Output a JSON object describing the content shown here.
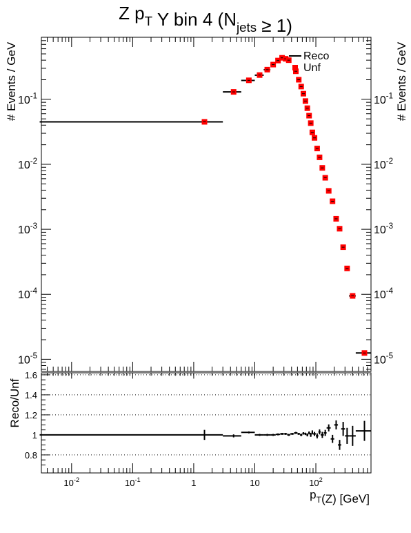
{
  "chart_data": [
    {
      "type": "scatter",
      "title": "Z p_T Y bin 4 (N_jets ≥ 1)",
      "xlabel": "",
      "ylabel": "# Events / GeV",
      "ylabel_right": "# Events / GeV",
      "x_scale": "log",
      "y_scale": "log",
      "xlim": [
        0.0032,
        800
      ],
      "ylim": [
        6.5e-06,
        0.9
      ],
      "x_tick_labels": [
        "10^{-2}",
        "10^{-1}",
        "1",
        "10",
        "10^{2}"
      ],
      "y_tick_labels": [
        "10^{-5}",
        "10^{-4}",
        "10^{-3}",
        "10^{-2}",
        "10^{-1}"
      ],
      "legend": {
        "placement": "top-center",
        "entries": [
          "Reco",
          "Unf"
        ]
      },
      "colors": {
        "reco": "#000000",
        "unf": "#ff0000"
      },
      "series": [
        {
          "name": "Reco",
          "style": "horizontal bars",
          "points": [
            {
              "xlo": 0.003,
              "xhi": 3,
              "y": 0.045
            },
            {
              "xlo": 3,
              "xhi": 6,
              "y": 0.13
            },
            {
              "xlo": 6,
              "xhi": 10,
              "y": 0.195
            },
            {
              "xlo": 10,
              "xhi": 14,
              "y": 0.235
            },
            {
              "xlo": 14,
              "xhi": 18,
              "y": 0.285
            },
            {
              "xlo": 18,
              "xhi": 22,
              "y": 0.34
            },
            {
              "xlo": 22,
              "xhi": 26,
              "y": 0.395
            },
            {
              "xlo": 26,
              "xhi": 30,
              "y": 0.435
            },
            {
              "xlo": 30,
              "xhi": 34,
              "y": 0.42
            },
            {
              "xlo": 34,
              "xhi": 38,
              "y": 0.4
            },
            {
              "xlo": 50,
              "xhi": 55,
              "y": 0.2
            },
            {
              "xlo": 55,
              "xhi": 60,
              "y": 0.157
            },
            {
              "xlo": 60,
              "xhi": 65,
              "y": 0.122
            },
            {
              "xlo": 65,
              "xhi": 70,
              "y": 0.094
            },
            {
              "xlo": 70,
              "xhi": 75,
              "y": 0.073
            },
            {
              "xlo": 75,
              "xhi": 80,
              "y": 0.056
            },
            {
              "xlo": 80,
              "xhi": 85,
              "y": 0.043
            },
            {
              "xlo": 85,
              "xhi": 90,
              "y": 0.031
            },
            {
              "xlo": 90,
              "xhi": 100,
              "y": 0.0255
            },
            {
              "xlo": 100,
              "xhi": 110,
              "y": 0.0175
            },
            {
              "xlo": 110,
              "xhi": 120,
              "y": 0.0128
            },
            {
              "xlo": 120,
              "xhi": 135,
              "y": 0.0088
            },
            {
              "xlo": 135,
              "xhi": 150,
              "y": 0.0062
            },
            {
              "xlo": 150,
              "xhi": 175,
              "y": 0.0039
            },
            {
              "xlo": 175,
              "xhi": 200,
              "y": 0.0027
            },
            {
              "xlo": 200,
              "xhi": 230,
              "y": 0.00145
            },
            {
              "xlo": 230,
              "xhi": 260,
              "y": 0.00102
            },
            {
              "xlo": 260,
              "xhi": 300,
              "y": 0.00053
            },
            {
              "xlo": 300,
              "xhi": 350,
              "y": 0.00025
            },
            {
              "xlo": 350,
              "xhi": 450,
              "y": 9.45e-05
            },
            {
              "xlo": 450,
              "xhi": 800,
              "y": 1.25e-05
            }
          ]
        },
        {
          "name": "Unf",
          "style": "red squares",
          "points": [
            {
              "x": 1.5,
              "y": 0.045
            },
            {
              "x": 4.5,
              "y": 0.13
            },
            {
              "x": 8,
              "y": 0.196
            },
            {
              "x": 12,
              "y": 0.236
            },
            {
              "x": 16,
              "y": 0.286
            },
            {
              "x": 20,
              "y": 0.342
            },
            {
              "x": 24,
              "y": 0.395
            },
            {
              "x": 28,
              "y": 0.435
            },
            {
              "x": 32,
              "y": 0.42
            },
            {
              "x": 36,
              "y": 0.4
            },
            {
              "x": 47,
              "y": 0.27
            },
            {
              "x": 52.5,
              "y": 0.2
            },
            {
              "x": 57.5,
              "y": 0.157
            },
            {
              "x": 62.5,
              "y": 0.122
            },
            {
              "x": 67.5,
              "y": 0.094
            },
            {
              "x": 72.5,
              "y": 0.073
            },
            {
              "x": 77.5,
              "y": 0.056
            },
            {
              "x": 82.5,
              "y": 0.043
            },
            {
              "x": 87.5,
              "y": 0.031
            },
            {
              "x": 95,
              "y": 0.0255
            },
            {
              "x": 105,
              "y": 0.0175
            },
            {
              "x": 115,
              "y": 0.0128
            },
            {
              "x": 127.5,
              "y": 0.0088
            },
            {
              "x": 142.5,
              "y": 0.0062
            },
            {
              "x": 162.5,
              "y": 0.0039
            },
            {
              "x": 187.5,
              "y": 0.0027
            },
            {
              "x": 215,
              "y": 0.00145
            },
            {
              "x": 245,
              "y": 0.00102
            },
            {
              "x": 280,
              "y": 0.00053
            },
            {
              "x": 325,
              "y": 0.00025
            },
            {
              "x": 400,
              "y": 9.45e-05
            },
            {
              "x": 625,
              "y": 1.25e-05
            }
          ]
        }
      ]
    },
    {
      "type": "scatter",
      "title": "",
      "xlabel": "p_T(Z) [GeV]",
      "ylabel": "Reco/Unf",
      "x_scale": "log",
      "y_scale": "linear",
      "xlim": [
        0.0032,
        800
      ],
      "ylim": [
        0.62,
        1.62
      ],
      "y_ticks": [
        0.8,
        1,
        1.2,
        1.4,
        1.6
      ],
      "y_tick_labels": [
        "0.8",
        "1",
        "1.2",
        "1.4",
        "1.6"
      ],
      "x_tick_labels": [
        "10^{-2}",
        "10^{-1}",
        "1",
        "10",
        "10^{2}"
      ],
      "grid": "horizontal dotted at 0.8, 1.2, 1.4, 1.6",
      "series": [
        {
          "name": "",
          "points": [
            {
              "x": 1.5,
              "xlo": 0.003,
              "xhi": 3,
              "y": 1.0,
              "err": 0.0
            },
            {
              "x": 1.5,
              "xlo": 1.5,
              "xhi": 1.5,
              "y": 1.0,
              "err": 0.05
            },
            {
              "x": 4.5,
              "xlo": 3,
              "xhi": 6,
              "y": 0.99,
              "err": 0.015
            },
            {
              "x": 8,
              "xlo": 6,
              "xhi": 10,
              "y": 1.025,
              "err": 0.01
            },
            {
              "x": 12,
              "xlo": 10,
              "xhi": 14,
              "y": 1.0,
              "err": 0.01
            },
            {
              "x": 16,
              "xlo": 14,
              "xhi": 18,
              "y": 1.0,
              "err": 0.01
            },
            {
              "x": 20,
              "xlo": 18,
              "xhi": 22,
              "y": 1.0,
              "err": 0.01
            },
            {
              "x": 24,
              "xlo": 22,
              "xhi": 26,
              "y": 1.005,
              "err": 0.01
            },
            {
              "x": 28,
              "xlo": 26,
              "xhi": 30,
              "y": 1.01,
              "err": 0.01
            },
            {
              "x": 32,
              "xlo": 30,
              "xhi": 34,
              "y": 1.01,
              "err": 0.01
            },
            {
              "x": 36,
              "xlo": 34,
              "xhi": 38,
              "y": 1.0,
              "err": 0.01
            },
            {
              "x": 41,
              "xlo": 38,
              "xhi": 44,
              "y": 1.01,
              "err": 0.01
            },
            {
              "x": 47,
              "xlo": 44,
              "xhi": 50,
              "y": 1.02,
              "err": 0.01
            },
            {
              "x": 52.5,
              "xlo": 50,
              "xhi": 55,
              "y": 1.01,
              "err": 0.01
            },
            {
              "x": 57.5,
              "xlo": 55,
              "xhi": 60,
              "y": 1.0,
              "err": 0.012
            },
            {
              "x": 62.5,
              "xlo": 60,
              "xhi": 65,
              "y": 1.015,
              "err": 0.012
            },
            {
              "x": 67.5,
              "xlo": 65,
              "xhi": 70,
              "y": 1.01,
              "err": 0.012
            },
            {
              "x": 72.5,
              "xlo": 70,
              "xhi": 75,
              "y": 1.0,
              "err": 0.015
            },
            {
              "x": 77.5,
              "xlo": 75,
              "xhi": 80,
              "y": 1.02,
              "err": 0.015
            },
            {
              "x": 82.5,
              "xlo": 80,
              "xhi": 85,
              "y": 1.0,
              "err": 0.02
            },
            {
              "x": 87.5,
              "xlo": 85,
              "xhi": 90,
              "y": 1.025,
              "err": 0.02
            },
            {
              "x": 95,
              "xlo": 90,
              "xhi": 100,
              "y": 1.01,
              "err": 0.02
            },
            {
              "x": 105,
              "xlo": 100,
              "xhi": 110,
              "y": 0.99,
              "err": 0.025
            },
            {
              "x": 115,
              "xlo": 110,
              "xhi": 120,
              "y": 1.03,
              "err": 0.025
            },
            {
              "x": 127.5,
              "xlo": 120,
              "xhi": 135,
              "y": 1.0,
              "err": 0.03
            },
            {
              "x": 142.5,
              "xlo": 135,
              "xhi": 150,
              "y": 1.02,
              "err": 0.03
            },
            {
              "x": 162.5,
              "xlo": 150,
              "xhi": 175,
              "y": 1.07,
              "err": 0.035
            },
            {
              "x": 187.5,
              "xlo": 175,
              "xhi": 200,
              "y": 0.96,
              "err": 0.04
            },
            {
              "x": 215,
              "xlo": 200,
              "xhi": 230,
              "y": 1.1,
              "err": 0.045
            },
            {
              "x": 245,
              "xlo": 230,
              "xhi": 260,
              "y": 0.9,
              "err": 0.05
            },
            {
              "x": 280,
              "xlo": 260,
              "xhi": 300,
              "y": 1.06,
              "err": 0.07
            },
            {
              "x": 325,
              "xlo": 300,
              "xhi": 350,
              "y": 0.99,
              "err": 0.08
            },
            {
              "x": 400,
              "xlo": 350,
              "xhi": 450,
              "y": 0.99,
              "err": 0.1
            },
            {
              "x": 625,
              "xlo": 450,
              "xhi": 800,
              "y": 1.04,
              "err": 0.1
            }
          ]
        }
      ]
    }
  ]
}
